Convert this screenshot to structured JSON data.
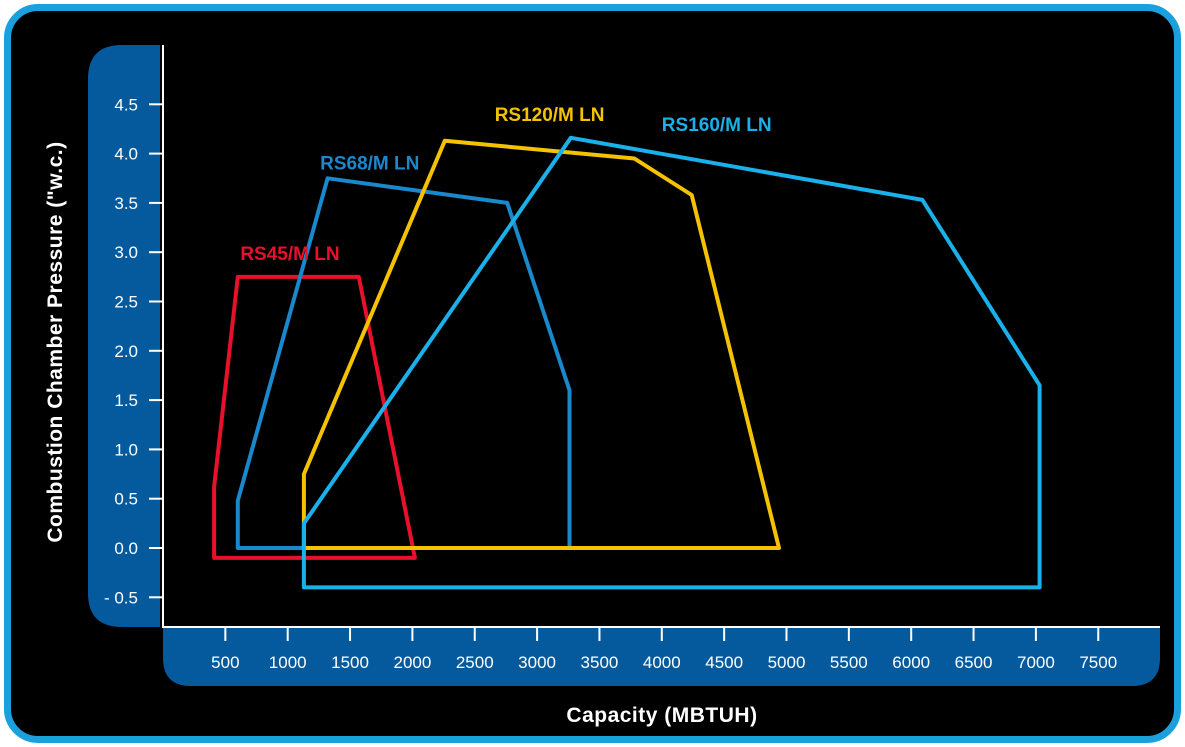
{
  "chart_data": {
    "type": "area",
    "title": "",
    "xlabel": "Capacity (MBTUH)",
    "ylabel": "Combustion Chamber Pressure (\"w.c.)",
    "x_ticks": [
      {
        "value": 500,
        "label": "500"
      },
      {
        "value": 1000,
        "label": "1000"
      },
      {
        "value": 1500,
        "label": "1500"
      },
      {
        "value": 2000,
        "label": "2000"
      },
      {
        "value": 2500,
        "label": "2500"
      },
      {
        "value": 3000,
        "label": "3000"
      },
      {
        "value": 3500,
        "label": "3500"
      },
      {
        "value": 4000,
        "label": "4000"
      },
      {
        "value": 4500,
        "label": "4500"
      },
      {
        "value": 5000,
        "label": "5000"
      },
      {
        "value": 5500,
        "label": "5500"
      },
      {
        "value": 6000,
        "label": "6000"
      },
      {
        "value": 6500,
        "label": "6500"
      },
      {
        "value": 7000,
        "label": "7000"
      },
      {
        "value": 7500,
        "label": "7500"
      }
    ],
    "y_ticks": [
      {
        "value": -0.5,
        "label": "- 0.5"
      },
      {
        "value": 0.0,
        "label": "0.0"
      },
      {
        "value": 0.5,
        "label": "0.5"
      },
      {
        "value": 1.0,
        "label": "1.0"
      },
      {
        "value": 1.5,
        "label": "1.5"
      },
      {
        "value": 2.0,
        "label": "2.0"
      },
      {
        "value": 2.5,
        "label": "2.5"
      },
      {
        "value": 3.0,
        "label": "3.0"
      },
      {
        "value": 3.5,
        "label": "3.5"
      },
      {
        "value": 4.0,
        "label": "4.0"
      },
      {
        "value": 4.5,
        "label": "4.5"
      }
    ],
    "xlim": [
      0,
      8000
    ],
    "ylim": [
      -0.7,
      5.1
    ],
    "grid": false,
    "series": [
      {
        "name": "RS45/M LN",
        "color": "#e8102a",
        "points": [
          [
            410,
            -0.1
          ],
          [
            2020,
            -0.1
          ],
          [
            1570,
            2.75
          ],
          [
            600,
            2.75
          ],
          [
            410,
            0.62
          ],
          [
            410,
            -0.1
          ]
        ]
      },
      {
        "name": "RS68/M LN",
        "color": "#1a88cc",
        "points": [
          [
            600,
            0.0
          ],
          [
            3260,
            0.0
          ],
          [
            3260,
            1.6
          ],
          [
            2760,
            3.5
          ],
          [
            1320,
            3.75
          ],
          [
            600,
            0.48
          ],
          [
            600,
            0.0
          ]
        ]
      },
      {
        "name": "RS120/M LN",
        "color": "#f5c200",
        "points": [
          [
            1130,
            0.0
          ],
          [
            4940,
            0.0
          ],
          [
            4240,
            3.58
          ],
          [
            3780,
            3.95
          ],
          [
            2260,
            4.13
          ],
          [
            1130,
            0.75
          ],
          [
            1130,
            0.0
          ]
        ]
      },
      {
        "name": "RS160/M LN",
        "color": "#1ab0ea",
        "points": [
          [
            1130,
            -0.4
          ],
          [
            7030,
            -0.4
          ],
          [
            7030,
            1.65
          ],
          [
            6090,
            3.53
          ],
          [
            3270,
            4.16
          ],
          [
            1130,
            0.25
          ],
          [
            1130,
            -0.4
          ]
        ]
      }
    ],
    "series_labels": [
      {
        "name": "RS45/M LN",
        "x": 620,
        "y": 2.92
      },
      {
        "name": "RS68/M LN",
        "x": 1260,
        "y": 3.84
      },
      {
        "name": "RS120/M LN",
        "x": 2660,
        "y": 4.33
      },
      {
        "name": "RS160/M LN",
        "x": 4000,
        "y": 4.23
      }
    ]
  }
}
